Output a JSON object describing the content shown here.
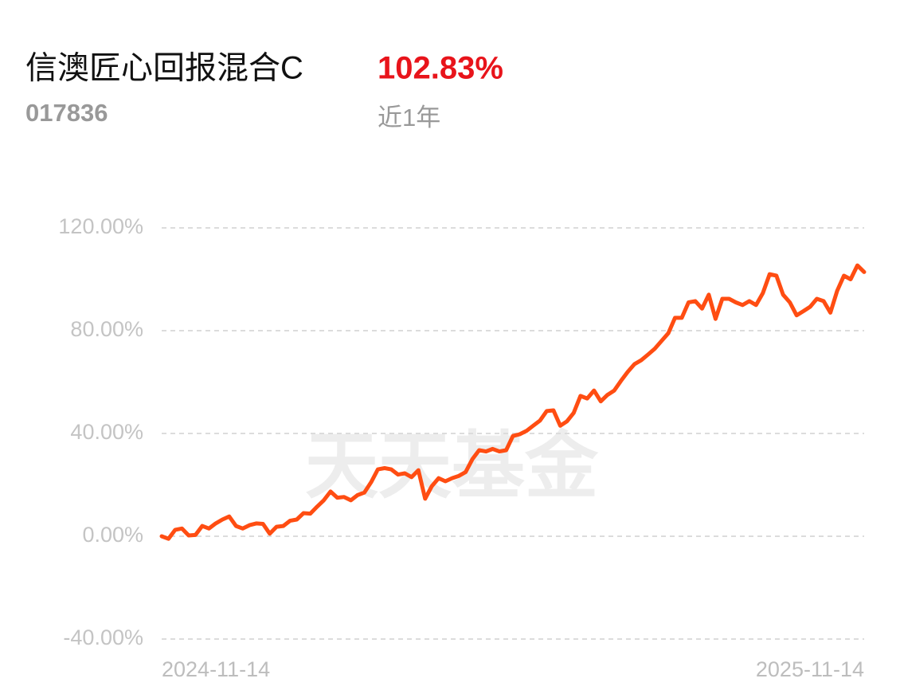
{
  "header": {
    "title": "信澳匠心回报混合C",
    "code": "017836",
    "return": "102.83%",
    "period": "近1年"
  },
  "watermark": "天天基金",
  "chart_data": {
    "type": "line",
    "color": "#ff4d12",
    "categories": [
      "2024-11-14",
      null,
      null,
      null,
      null,
      null,
      null,
      null,
      null,
      null,
      null,
      null,
      null,
      null,
      null,
      null,
      null,
      null,
      null,
      null,
      null,
      null,
      null,
      null,
      null,
      null,
      null,
      null,
      null,
      null,
      null,
      null,
      null,
      null,
      null,
      null,
      null,
      null,
      null,
      null,
      null,
      null,
      null,
      null,
      null,
      null,
      null,
      null,
      null,
      null,
      null,
      null,
      null,
      null,
      null,
      null,
      null,
      null,
      null,
      null,
      null,
      null,
      null,
      null,
      null,
      null,
      null,
      null,
      null,
      null,
      null,
      null,
      null,
      null,
      null,
      null,
      null,
      null,
      null,
      null,
      null,
      null,
      null,
      null,
      null,
      null,
      null,
      null,
      null,
      null,
      null,
      null,
      null,
      null,
      null,
      null,
      null,
      null,
      null,
      null,
      null,
      null,
      null,
      null,
      "2025-11-14"
    ],
    "values": [
      0,
      -1,
      2.5,
      3,
      0.3,
      0.5,
      4,
      3,
      5,
      6.5,
      7.7,
      4,
      3,
      4.3,
      5,
      4.8,
      1,
      3.7,
      4,
      6,
      6.5,
      9,
      8.8,
      11.5,
      14,
      17.4,
      15,
      15.3,
      14,
      16,
      17,
      21,
      26,
      26.5,
      26,
      24,
      24.5,
      23,
      25.7,
      14.6,
      19.5,
      22.6,
      21.4,
      22.6,
      23.5,
      25,
      30,
      33.5,
      33,
      34,
      33,
      33.5,
      39,
      39.7,
      41,
      43,
      45,
      48.7,
      49,
      43,
      44.7,
      48,
      54.6,
      53.6,
      56.7,
      52.5,
      55,
      56.7,
      60.5,
      64,
      67,
      68.5,
      70.7,
      73,
      76,
      79,
      85,
      85,
      91,
      91.5,
      88.6,
      94,
      84.6,
      92.4,
      92.4,
      91,
      90,
      91.5,
      90,
      94.6,
      102,
      101.4,
      94,
      91,
      86,
      87.6,
      89.3,
      92.4,
      91.5,
      87,
      95.5,
      101.4,
      100,
      105.4,
      102.83
    ],
    "ylim": [
      -40,
      120
    ],
    "yticks": [
      {
        "value": -40,
        "label": "-40.00%"
      },
      {
        "value": 0,
        "label": "0.00%"
      },
      {
        "value": 40,
        "label": "40.00%"
      },
      {
        "value": 80,
        "label": "80.00%"
      },
      {
        "value": 120,
        "label": "120.00%"
      }
    ],
    "grid": true
  }
}
